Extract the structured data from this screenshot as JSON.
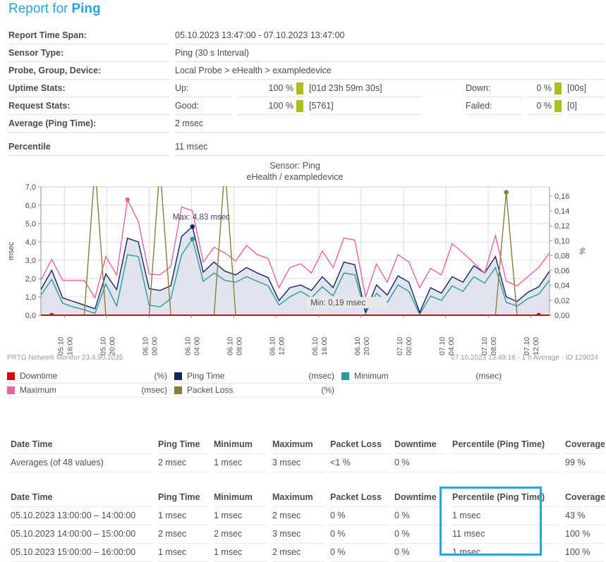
{
  "title": {
    "prefix": "Report for",
    "sensor": "Ping"
  },
  "info": {
    "rows": [
      {
        "label": "Report Time Span:",
        "value": "05.10.2023 13:47:00 - 07.10.2023 13:47:00"
      },
      {
        "label": "Sensor Type:",
        "value": "Ping (30 s Interval)"
      },
      {
        "label": "Probe, Group, Device:",
        "value": "Local Probe > eHealth > exampledevice"
      },
      {
        "label": "Uptime Stats:",
        "k1": "Up:",
        "v1": "100 %",
        "b1": "[01d 23h 59m 30s]",
        "k2": "Down:",
        "v2": "0 %",
        "b2": "[00s]"
      },
      {
        "label": "Request Stats:",
        "k1": "Good:",
        "v1": "100 %",
        "b1": "[5761]",
        "k2": "Failed:",
        "v2": "0 %",
        "b2": "[0]"
      },
      {
        "label": "Average (Ping Time):",
        "value": "2 msec"
      },
      {
        "label": "Percentile",
        "value": "11 msec"
      }
    ]
  },
  "chart_data": {
    "type": "line",
    "title": "Sensor: Ping",
    "subtitle": "eHealth / exampledevice",
    "footer_left": "PRTG Network Monitor 23.4.90.1035",
    "footer_right": "07.10.2023 13:49:16 - 1 h Average - ID 129024",
    "ylabel_left": "msec",
    "ylabel_right": "%",
    "ylim_left": [
      0,
      7
    ],
    "ylim_right": [
      0,
      0.1723
    ],
    "left_tick_step": 1,
    "right_tick_step": 0.02,
    "grid": true,
    "x_tick_labels": [
      "05.10 16:00",
      "05.10 20:00",
      "06.10 00:00",
      "06.10 04:00",
      "06.10 08:00",
      "06.10 12:00",
      "06.10 16:00",
      "06.10 20:00",
      "07.10 00:00",
      "07.10 04:00",
      "07.10 08:00",
      "07.10 12:00"
    ],
    "series": [
      {
        "name": "Downtime",
        "unit": "(%)",
        "color": "red",
        "axis": "right",
        "values": [
          0,
          0,
          0,
          0,
          0,
          0,
          0,
          0,
          0,
          0,
          0,
          0,
          0,
          0,
          0,
          0,
          0,
          0,
          0,
          0,
          0,
          0,
          0,
          0,
          0,
          0,
          0,
          0,
          0,
          0,
          0,
          0,
          0,
          0,
          0,
          0,
          0,
          0,
          0,
          0,
          0,
          0,
          0,
          0,
          0,
          0,
          0,
          0
        ]
      },
      {
        "name": "Ping Time",
        "unit": "(msec)",
        "color": "navy",
        "axis": "left",
        "values": [
          1.4,
          2.45,
          0.95,
          0.75,
          0.55,
          0.35,
          2.25,
          1.4,
          4.2,
          4.0,
          1.45,
          1.35,
          1.6,
          4.3,
          4.83,
          2.35,
          2.9,
          2.4,
          2.2,
          2.6,
          2.3,
          2.05,
          0.8,
          1.5,
          1.65,
          1.35,
          2.1,
          1.5,
          2.9,
          2.75,
          0.19,
          1.65,
          1.1,
          2.15,
          1.8,
          0.15,
          1.5,
          1.2,
          2.1,
          1.8,
          2.7,
          2.3,
          3.2,
          1.0,
          0.75,
          1.25,
          1.55,
          2.4
        ]
      },
      {
        "name": "Minimum",
        "unit": "(msec)",
        "color": "teal",
        "axis": "left",
        "values": [
          1.1,
          1.95,
          0.65,
          0.45,
          0.3,
          0.1,
          1.7,
          0.5,
          3.3,
          3.2,
          0.55,
          0.45,
          0.9,
          3.3,
          4.15,
          1.85,
          2.3,
          1.9,
          1.8,
          2.1,
          1.85,
          1.6,
          0.55,
          1.0,
          1.3,
          0.95,
          1.55,
          1.05,
          2.3,
          2.2,
          0.1,
          1.2,
          0.7,
          1.65,
          1.3,
          0.05,
          1.05,
          0.8,
          1.6,
          1.3,
          2.1,
          1.75,
          2.6,
          0.7,
          0.5,
          0.9,
          1.15,
          1.9
        ]
      },
      {
        "name": "Maximum",
        "unit": "(msec)",
        "color": "pink",
        "axis": "left",
        "values": [
          1.9,
          3.05,
          1.9,
          1.9,
          1.9,
          0.95,
          3.2,
          2.2,
          6.3,
          5.1,
          2.25,
          2.2,
          2.65,
          5.9,
          5.7,
          2.9,
          3.7,
          3.4,
          2.95,
          3.8,
          3.3,
          3.1,
          1.5,
          2.6,
          2.8,
          2.3,
          3.5,
          2.6,
          4.2,
          4.1,
          1.0,
          2.8,
          1.8,
          3.3,
          2.9,
          1.5,
          2.55,
          2.2,
          3.9,
          3.4,
          2.85,
          2.3,
          4.35,
          1.85,
          1.6,
          2.1,
          2.6,
          3.4
        ]
      },
      {
        "name": "Packet Loss",
        "unit": "(%)",
        "color": "olive",
        "axis": "right",
        "values": [
          0,
          0,
          0,
          0,
          0,
          0.2,
          0,
          0,
          0,
          0,
          0,
          0.2,
          0,
          0,
          0,
          0,
          0,
          0.2,
          0,
          0,
          0,
          0,
          0,
          0,
          0,
          0,
          0,
          0,
          0,
          0,
          0,
          0,
          0,
          0,
          0,
          0,
          0,
          0,
          0,
          0,
          0,
          0,
          0,
          0.165,
          0,
          0,
          0,
          0
        ]
      }
    ],
    "annotations": [
      {
        "label": "Max: 4,83 msec",
        "series": "Ping Time",
        "index": 14,
        "value": 4.83,
        "boxed": false
      },
      {
        "label": "Min: 0,19 msec",
        "series": "Ping Time",
        "index": 30,
        "value": 0.19,
        "boxed": true
      }
    ],
    "markers": [
      {
        "series": "Downtime",
        "index": 1
      },
      {
        "series": "Downtime",
        "index": 46
      },
      {
        "series": "Maximum",
        "index": 8
      },
      {
        "series": "Ping Time",
        "index": 14
      },
      {
        "series": "Minimum",
        "index": 14
      },
      {
        "series": "Packet Loss",
        "index": 43
      }
    ]
  },
  "legend": {
    "items": [
      {
        "name": "Downtime",
        "unit": "(%)",
        "color": "red"
      },
      {
        "name": "Ping Time",
        "unit": "(msec)",
        "color": "navy"
      },
      {
        "name": "Minimum",
        "unit": "(msec)",
        "color": "teal"
      },
      {
        "name": "Maximum",
        "unit": "(msec)",
        "color": "pink"
      },
      {
        "name": "Packet Loss",
        "unit": "(%)",
        "color": "olive"
      }
    ]
  },
  "tables": {
    "headers": [
      "Date Time",
      "Ping Time",
      "Minimum",
      "Maximum",
      "Packet Loss",
      "Downtime",
      "Percentile (Ping Time)",
      "Coverage"
    ],
    "averages": {
      "rows": [
        [
          "Averages (of 48 values)",
          "2 msec",
          "1 msec",
          "3 msec",
          "<1 %",
          "0 %",
          "",
          "99 %"
        ]
      ]
    },
    "hourly": {
      "rows": [
        [
          "05.10.2023 13:00:00 – 14:00:00",
          "1 msec",
          "1 msec",
          "2 msec",
          "0 %",
          "0 %",
          "1 msec",
          "43 %"
        ],
        [
          "05.10.2023 14:00:00 – 15:00:00",
          "2 msec",
          "2 msec",
          "3 msec",
          "0 %",
          "0 %",
          "11 msec",
          "100 %"
        ],
        [
          "05.10.2023 15:00:00 – 16:00:00",
          "1 msec",
          "1 msec",
          "2 msec",
          "0 %",
          "0 %",
          "1 msec",
          "100 %"
        ]
      ]
    }
  },
  "colors": {
    "red": "#d40808",
    "navy": "#17255f",
    "teal": "#2d9b95",
    "pink": "#e8639f",
    "olive": "#847f3a",
    "area_fill": "#e0e4ef",
    "green_bar": "#aebe1e",
    "title_blue": "#29a2da",
    "highlight_blue": "#2aa3dc"
  }
}
